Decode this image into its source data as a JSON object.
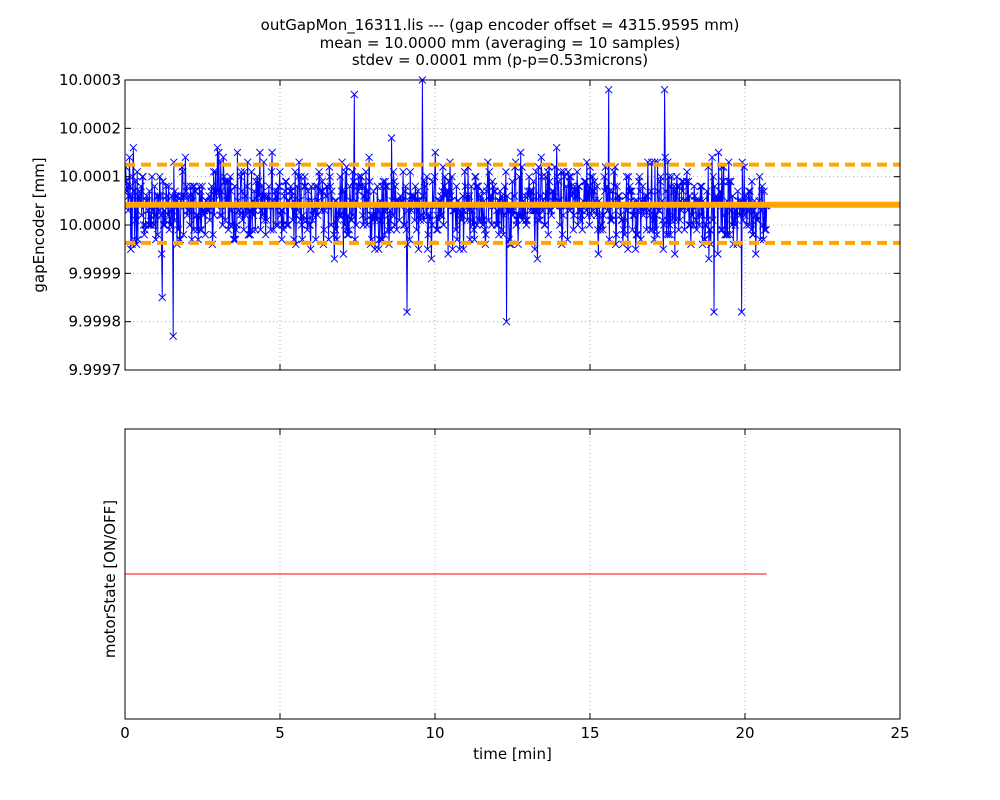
{
  "title_lines": [
    "outGapMon_16311.lis --- (gap encoder offset = 4315.9595 mm)",
    "mean = 10.0000 mm (averaging = 10 samples)",
    "stdev = 0.0001 mm (p-p=0.53microns)"
  ],
  "chart_data": [
    {
      "type": "line",
      "ylabel": "gapEncoder [mm]",
      "xlim": [
        0,
        25
      ],
      "ylim": [
        9.9997,
        10.0003
      ],
      "x_ticks": [
        0,
        5,
        10,
        15,
        20,
        25
      ],
      "y_ticks": [
        9.9997,
        9.9998,
        9.9999,
        10.0,
        10.0001,
        10.0002,
        10.0003
      ],
      "y_tick_labels": [
        "9.9997",
        "9.9998",
        "9.9999",
        "10.0000",
        "10.0001",
        "10.0002",
        "10.0003"
      ],
      "show_x_tick_labels": false,
      "grid": true,
      "series": [
        {
          "role": "measurement",
          "color": "#0000ff",
          "marker": "x",
          "x_range": [
            0,
            20.7
          ],
          "n_points": 1000,
          "mean": 10.00004,
          "stdev": 5e-05,
          "min": 9.99977,
          "max": 10.0003,
          "noted_points": [
            {
              "x": 1.55,
              "y": 9.99977
            },
            {
              "x": 1.2,
              "y": 9.99985
            },
            {
              "x": 9.6,
              "y": 10.0003
            },
            {
              "x": 9.1,
              "y": 9.99982
            },
            {
              "x": 12.3,
              "y": 9.9998
            },
            {
              "x": 7.4,
              "y": 10.00027
            },
            {
              "x": 15.6,
              "y": 10.00028
            },
            {
              "x": 17.4,
              "y": 10.00028
            },
            {
              "x": 19.0,
              "y": 9.99982
            },
            {
              "x": 19.9,
              "y": 9.99982
            }
          ]
        }
      ],
      "reference_lines": [
        {
          "role": "mean",
          "y": 10.000042,
          "color": "#ffa500",
          "style": "solid",
          "x_range": [
            0,
            25
          ]
        },
        {
          "role": "upper",
          "y": 10.000125,
          "color": "#ffa500",
          "style": "dashed",
          "x_range": [
            0,
            25
          ]
        },
        {
          "role": "lower",
          "y": 9.999963,
          "color": "#ffa500",
          "style": "dashed",
          "x_range": [
            0,
            25
          ]
        }
      ]
    },
    {
      "type": "line",
      "xlabel": "time [min]",
      "ylabel": "motorState [ON/OFF]",
      "xlim": [
        0,
        25
      ],
      "ylim": [
        -1,
        1
      ],
      "x_ticks": [
        0,
        5,
        10,
        15,
        20,
        25
      ],
      "x_tick_labels": [
        "0",
        "5",
        "10",
        "15",
        "20",
        "25"
      ],
      "show_y_tick_labels": false,
      "grid": true,
      "series": [
        {
          "role": "motor",
          "color": "#ff0000",
          "x": [
            0,
            20.7
          ],
          "y": [
            0,
            0
          ]
        }
      ]
    }
  ]
}
